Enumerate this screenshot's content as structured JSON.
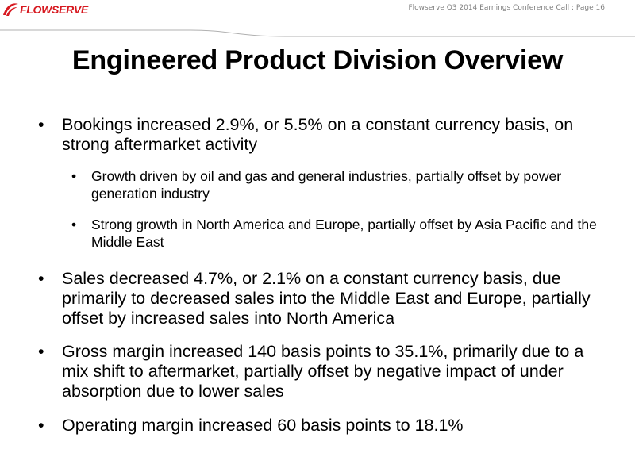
{
  "header": {
    "logo_text": "FLOWSERVE",
    "logo_icon": "flowserve-swoosh-logo",
    "caption": "Flowserve  Q3 2014 Earnings Conference Call  :  Page 16",
    "colors": {
      "brand_red": "#d71920",
      "rule_gray": "#b0b0b0"
    }
  },
  "title": "Engineered Product Division Overview",
  "bullets": [
    {
      "text": "Bookings increased 2.9%, or 5.5% on a constant currency basis, on strong aftermarket activity",
      "sub": [
        "Growth driven by oil and gas and general industries, partially offset by power generation industry",
        "Strong growth in North America and Europe, partially offset by Asia Pacific and the Middle East"
      ]
    },
    {
      "text": "Sales decreased 4.7%, or 2.1% on a constant currency basis, due primarily to decreased sales into the Middle East and Europe, partially offset by increased sales into North America"
    },
    {
      "text": "Gross margin increased 140 basis points to 35.1%, primarily due to a mix shift to aftermarket, partially offset by negative impact of under absorption due to lower sales"
    },
    {
      "text": "Operating margin increased 60 basis points to 18.1%"
    }
  ],
  "bullet_char": "•"
}
